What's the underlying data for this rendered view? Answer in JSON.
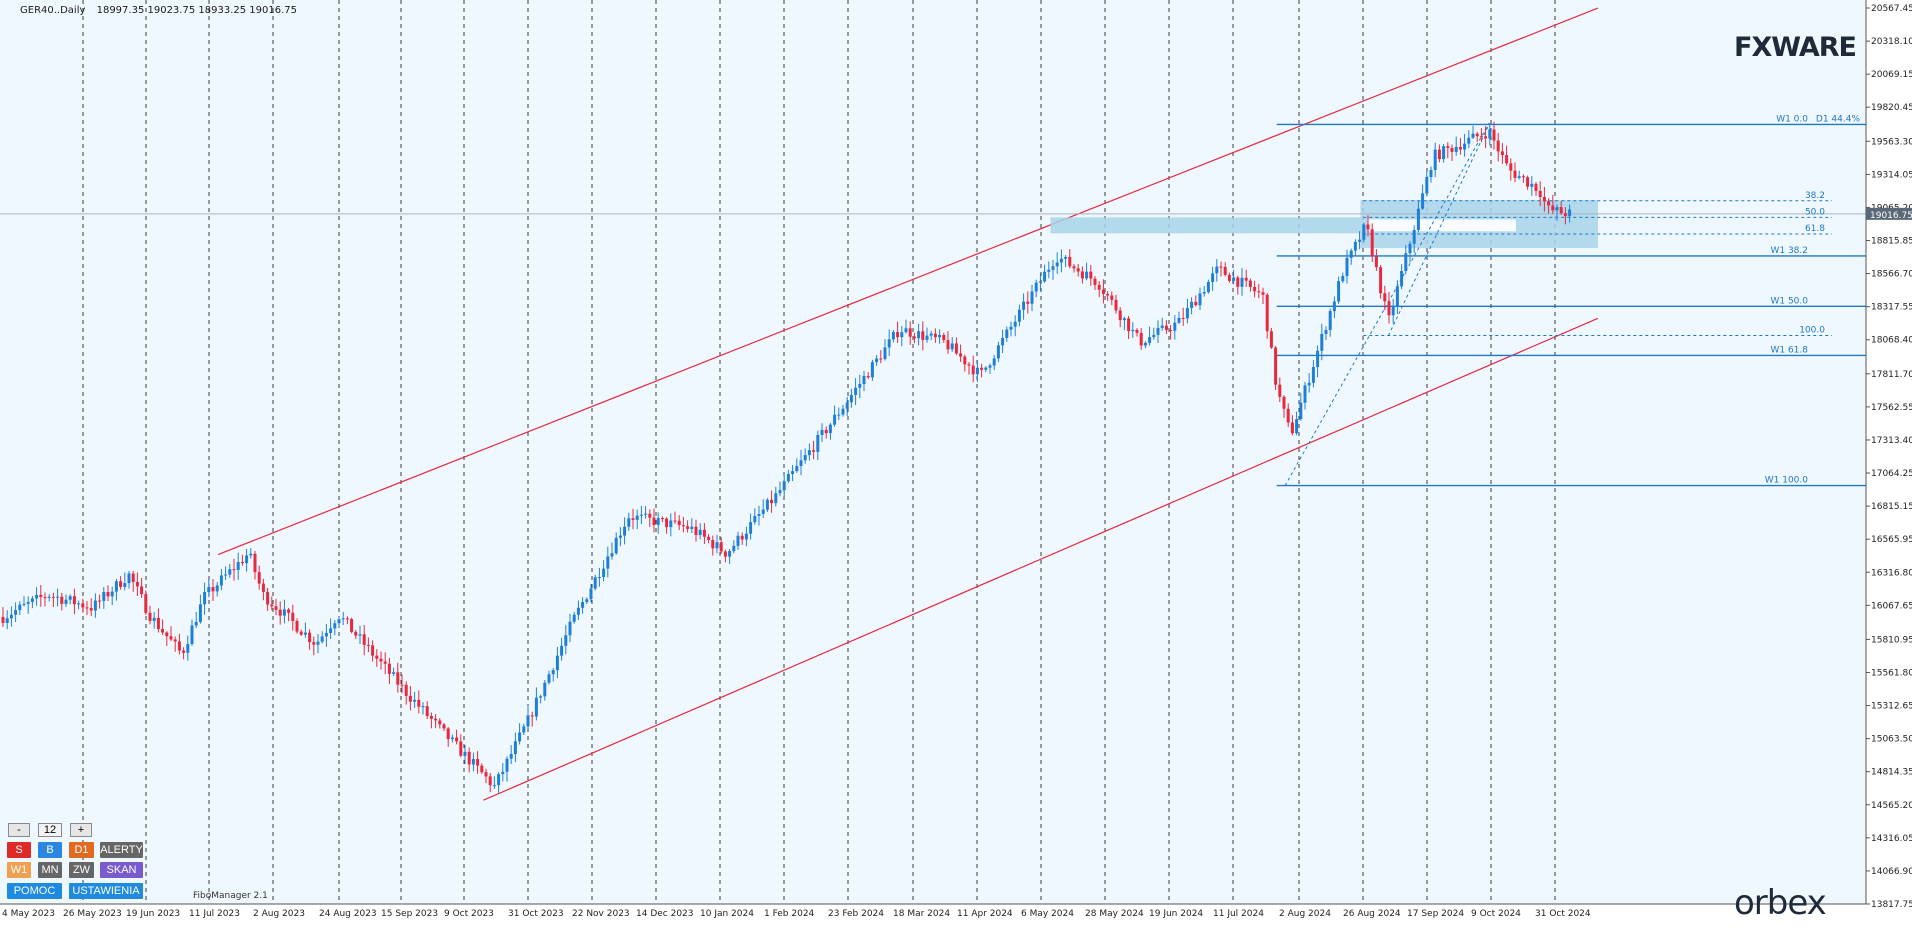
{
  "header": {
    "symbol": "GER40..Daily",
    "ohlc": "18997.35 19023.75 18933.25 19016.75"
  },
  "price_axis": {
    "ticks": [
      "20567.45",
      "20318.10",
      "20069.15",
      "19820.45",
      "19563.30",
      "19314.05",
      "19065.20",
      "18815.85",
      "18566.70",
      "18317.55",
      "18068.40",
      "17811.70",
      "17562.55",
      "17313.40",
      "17064.25",
      "16815.15",
      "16565.95",
      "16316.80",
      "16067.65",
      "15810.95",
      "15561.80",
      "15312.65",
      "15063.50",
      "14814.35",
      "14565.20",
      "14316.05",
      "14066.90",
      "13817.75"
    ],
    "current_price_label": "19016.75"
  },
  "time_axis": {
    "labels": [
      "4 May 2023",
      "26 May 2023",
      "19 Jun 2023",
      "11 Jul 2023",
      "2 Aug 2023",
      "24 Aug 2023",
      "15 Sep 2023",
      "9 Oct 2023",
      "31 Oct 2023",
      "22 Nov 2023",
      "14 Dec 2023",
      "10 Jan 2024",
      "1 Feb 2024",
      "23 Feb 2024",
      "18 Mar 2024",
      "11 Apr 2024",
      "6 May 2024",
      "28 May 2024",
      "19 Jun 2024",
      "11 Jul 2024",
      "2 Aug 2024",
      "26 Aug 2024",
      "17 Sep 2024",
      "9 Oct 2024",
      "31 Oct 2024"
    ]
  },
  "fibo_labels": {
    "w1_0": "W1 0.0",
    "d1_pct": "D1 44.4%",
    "d1_382": "38.2",
    "d1_500": "50.0",
    "d1_618": "61.8",
    "w1_382": "W1 38.2",
    "w1_500": "W1 50.0",
    "d1_100": "100.0",
    "w1_618": "W1 61.8",
    "w1_100": "W1 100.0"
  },
  "tool_label": "FiboManager 2.1",
  "controls": {
    "minus": "-",
    "value": "12",
    "plus": "+",
    "row1": [
      "S",
      "B",
      "D1",
      "ALERTY"
    ],
    "row2": [
      "W1",
      "MN",
      "ZW",
      "SKAN"
    ],
    "row3": [
      "POMOC",
      "USTAWIENIA"
    ]
  },
  "logos": {
    "brand_top": "FXWARE",
    "brand_bottom": "orbex"
  },
  "colors": {
    "background": "#f0f8ff",
    "bull": "#1e7fd8",
    "bear": "#e8283c",
    "channel": "#e8283c",
    "fibo": "#1e78c8",
    "zone": "#a8d4ea",
    "price_tag": "#5a6878"
  },
  "chart_data": {
    "type": "candlestick",
    "symbol": "GER40",
    "timeframe": "Daily",
    "ohlc_last": {
      "open": 18997.35,
      "high": 19023.75,
      "low": 18933.25,
      "close": 19016.75
    },
    "x_range": [
      "4 May 2023",
      "31 Oct 2024"
    ],
    "ylim": [
      13817.75,
      20567.45
    ],
    "anchors": [
      [
        "2023-05-04",
        15980
      ],
      [
        "2023-05-20",
        16150
      ],
      [
        "2023-06-05",
        16050
      ],
      [
        "2023-06-18",
        16300
      ],
      [
        "2023-06-26",
        15980
      ],
      [
        "2023-07-07",
        15700
      ],
      [
        "2023-07-15",
        16130
      ],
      [
        "2023-07-31",
        16460
      ],
      [
        "2023-08-05",
        16150
      ],
      [
        "2023-08-24",
        15780
      ],
      [
        "2023-09-01",
        16000
      ],
      [
        "2023-09-25",
        15420
      ],
      [
        "2023-10-09",
        15100
      ],
      [
        "2023-10-27",
        14700
      ],
      [
        "2023-11-08",
        15200
      ],
      [
        "2023-11-24",
        15950
      ],
      [
        "2023-12-14",
        16740
      ],
      [
        "2024-01-05",
        16650
      ],
      [
        "2024-01-18",
        16460
      ],
      [
        "2024-02-05",
        16900
      ],
      [
        "2024-02-23",
        17400
      ],
      [
        "2024-03-20",
        18150
      ],
      [
        "2024-04-05",
        18050
      ],
      [
        "2024-04-18",
        17800
      ],
      [
        "2024-05-15",
        18700
      ],
      [
        "2024-05-30",
        18500
      ],
      [
        "2024-06-14",
        18050
      ],
      [
        "2024-06-28",
        18200
      ],
      [
        "2024-07-12",
        18600
      ],
      [
        "2024-07-28",
        18400
      ],
      [
        "2024-08-02",
        17700
      ],
      [
        "2024-08-07",
        17350
      ],
      [
        "2024-08-26",
        18600
      ],
      [
        "2024-09-03",
        18930
      ],
      [
        "2024-09-11",
        18200
      ],
      [
        "2024-09-27",
        19450
      ],
      [
        "2024-10-17",
        19640
      ],
      [
        "2024-10-24",
        19350
      ],
      [
        "2024-11-04",
        19200
      ],
      [
        "2024-11-07",
        19050
      ],
      [
        "2024-11-15",
        19016.75
      ]
    ],
    "channel_upper": [
      [
        "2023-07-20",
        16450
      ],
      [
        "2024-05-13",
        18640
      ],
      [
        "2024-11-25",
        20567
      ]
    ],
    "channel_lower": [
      [
        "2023-10-23",
        14600
      ],
      [
        "2024-08-05",
        16970
      ],
      [
        "2024-11-25",
        18230
      ]
    ],
    "horizontal_levels": {
      "w1_0": 19690,
      "d1_382": 19115,
      "d1_500": 18990,
      "d1_618": 18865,
      "w1_382": 18700,
      "w1_500": 18320,
      "d1_100": 18100,
      "w1_618": 17950,
      "w1_100": 16970,
      "current": 19016.75
    },
    "zones": [
      {
        "from": "2024-05-13",
        "to": "2024-09-01",
        "low": 18870,
        "high": 18990
      },
      {
        "from": "2024-09-01",
        "to": "2024-11-25",
        "low": 18760,
        "high": 19120
      }
    ]
  }
}
